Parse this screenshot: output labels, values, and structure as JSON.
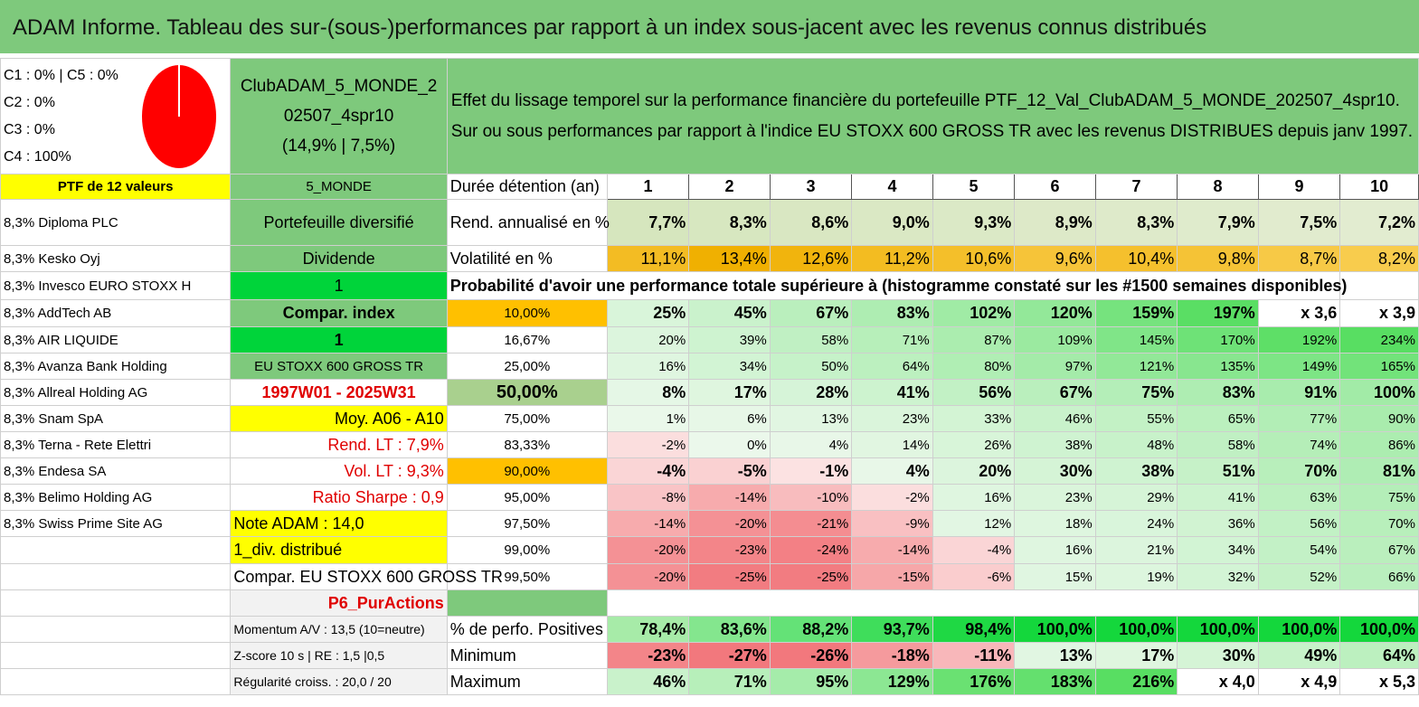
{
  "title": "ADAM Informe. Tableau des sur-(sous-)performances par rapport à un index sous-jacent avec les revenus connus distribués",
  "top_left": [
    "C1 : 0% | C5 : 0%",
    "C2 : 0%",
    "C3 : 0%",
    "C4 : 100%"
  ],
  "pie": {
    "color": "#ff0000",
    "share_c4": 1.0
  },
  "portfolio_name": "ClubADAM_5_MONDE_202507_4spr10",
  "portfolio_stats": "(14,9% | 7,5%)",
  "info_text": "Effet du lissage temporel sur la performance financière du portefeuille PTF_12_Val_ClubADAM_5_MONDE_202507_4spr10. Sur ou sous performances par rapport à l'indice EU STOXX 600 GROSS TR avec les revenus DISTRIBUES depuis janv 1997.",
  "ptf_header": "PTF de 12 valeurs",
  "universe": "5_MONDE",
  "duration_label": "Durée détention (an)",
  "years": [
    "1",
    "2",
    "3",
    "4",
    "5",
    "6",
    "7",
    "8",
    "9",
    "10"
  ],
  "holdings": [
    "8,3% Diploma PLC",
    "8,3% Kesko Oyj",
    "8,3% Invesco EURO STOXX H",
    "8,3% AddTech AB",
    "8,3% AIR LIQUIDE",
    "8,3% Avanza Bank Holding",
    "8,3% Allreal Holding AG",
    "8,3% Snam SpA",
    "8,3% Terna - Rete Elettri",
    "8,3% Endesa SA",
    "8,3% Belimo Holding AG",
    "8,3% Swiss Prime Site AG"
  ],
  "side": {
    "diversified": "Portefeuille diversifié",
    "dividend": "Dividende",
    "one_a": "1",
    "compar_index": "Compar. index",
    "one_b": "1",
    "index_name": "EU STOXX 600 GROSS TR",
    "period": "1997W01 - 2025W31",
    "moy": "Moy. A06 - A10",
    "rend_lt": "Rend. LT : 7,9%",
    "vol_lt": "Vol. LT : 9,3%",
    "sharpe": "Ratio Sharpe : 0,9",
    "note": "Note ADAM : 14,0",
    "div": "1_div. distribué",
    "compar": "Compar. EU STOXX 600 GROSS TR",
    "pur": "P6_PurActions",
    "momentum": "Momentum A/V : 13,5 (10=neutre)",
    "zscore": "Z-score 10 s | RE : 1,5 |0,5",
    "regularite": "Régularité croiss. : 20,0 / 20"
  },
  "rend_label": "Rend. annualisé en %",
  "rend": [
    "7,7%",
    "8,3%",
    "8,6%",
    "9,0%",
    "9,3%",
    "8,9%",
    "8,3%",
    "7,9%",
    "7,5%",
    "7,2%"
  ],
  "vol_label": "Volatilité en %",
  "vol": [
    "11,1%",
    "13,4%",
    "12,6%",
    "11,2%",
    "10,6%",
    "9,6%",
    "10,4%",
    "9,8%",
    "8,7%",
    "8,2%"
  ],
  "proba_header": "Probabilité d'avoir une performance totale supérieure à (histogramme constaté sur les #1500 semaines disponibles)",
  "probability_rows": [
    {
      "p": "10,00%",
      "v": [
        "25%",
        "45%",
        "67%",
        "83%",
        "102%",
        "120%",
        "159%",
        "197%",
        "x 3,6",
        "x 3,9"
      ]
    },
    {
      "p": "16,67%",
      "v": [
        "20%",
        "39%",
        "58%",
        "71%",
        "87%",
        "109%",
        "145%",
        "170%",
        "192%",
        "234%"
      ]
    },
    {
      "p": "25,00%",
      "v": [
        "16%",
        "34%",
        "50%",
        "64%",
        "80%",
        "97%",
        "121%",
        "135%",
        "149%",
        "165%"
      ]
    },
    {
      "p": "50,00%",
      "v": [
        "8%",
        "17%",
        "28%",
        "41%",
        "56%",
        "67%",
        "75%",
        "83%",
        "91%",
        "100%"
      ]
    },
    {
      "p": "75,00%",
      "v": [
        "1%",
        "6%",
        "13%",
        "23%",
        "33%",
        "46%",
        "55%",
        "65%",
        "77%",
        "90%"
      ]
    },
    {
      "p": "83,33%",
      "v": [
        "-2%",
        "0%",
        "4%",
        "14%",
        "26%",
        "38%",
        "48%",
        "58%",
        "74%",
        "86%"
      ]
    },
    {
      "p": "90,00%",
      "v": [
        "-4%",
        "-5%",
        "-1%",
        "4%",
        "20%",
        "30%",
        "38%",
        "51%",
        "70%",
        "81%"
      ]
    },
    {
      "p": "95,00%",
      "v": [
        "-8%",
        "-14%",
        "-10%",
        "-2%",
        "16%",
        "23%",
        "29%",
        "41%",
        "63%",
        "75%"
      ]
    },
    {
      "p": "97,50%",
      "v": [
        "-14%",
        "-20%",
        "-21%",
        "-9%",
        "12%",
        "18%",
        "24%",
        "36%",
        "56%",
        "70%"
      ]
    },
    {
      "p": "99,00%",
      "v": [
        "-20%",
        "-23%",
        "-24%",
        "-14%",
        "-4%",
        "16%",
        "21%",
        "34%",
        "54%",
        "67%"
      ]
    },
    {
      "p": "99,50%",
      "v": [
        "-20%",
        "-25%",
        "-25%",
        "-15%",
        "-6%",
        "15%",
        "19%",
        "32%",
        "52%",
        "66%"
      ]
    }
  ],
  "stats": [
    {
      "label": "% de perfo. Positives",
      "v": [
        "78,4%",
        "83,6%",
        "88,2%",
        "93,7%",
        "98,4%",
        "100,0%",
        "100,0%",
        "100,0%",
        "100,0%",
        "100,0%"
      ]
    },
    {
      "label": "Minimum",
      "v": [
        "-23%",
        "-27%",
        "-26%",
        "-18%",
        "-11%",
        "13%",
        "17%",
        "30%",
        "49%",
        "64%"
      ]
    },
    {
      "label": "Maximum",
      "v": [
        "46%",
        "71%",
        "95%",
        "129%",
        "176%",
        "183%",
        "216%",
        "x 4,0",
        "x 4,9",
        "x 5,3"
      ]
    }
  ]
}
